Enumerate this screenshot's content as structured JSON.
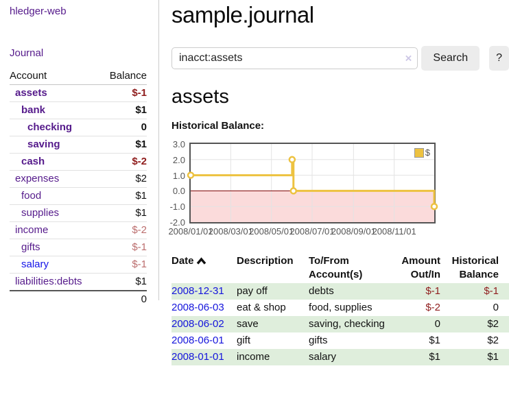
{
  "app": {
    "brand": "hledger-web",
    "nav_journal": "Journal"
  },
  "header": {
    "title": "sample.journal"
  },
  "search": {
    "value": "inacct:assets",
    "clear_icon": "×",
    "button_label": "Search",
    "help_label": "?"
  },
  "account_page": {
    "heading": "assets",
    "chart_title": "Historical Balance:"
  },
  "sidebar": {
    "columns": {
      "account": "Account",
      "balance": "Balance"
    },
    "accounts": [
      {
        "name": "assets",
        "level": 0,
        "bold": true,
        "balance": "$-1",
        "balance_style": "neg-strong"
      },
      {
        "name": "bank",
        "level": 1,
        "bold": true,
        "balance": "$1",
        "balance_style": "pos"
      },
      {
        "name": "checking",
        "level": 2,
        "bold": true,
        "balance": "0",
        "balance_style": "pos"
      },
      {
        "name": "saving",
        "level": 2,
        "bold": true,
        "balance": "$1",
        "balance_style": "pos"
      },
      {
        "name": "cash",
        "level": 1,
        "bold": true,
        "balance": "$-2",
        "balance_style": "neg-strong"
      },
      {
        "name": "expenses",
        "level": 0,
        "bold": false,
        "balance": "$2",
        "balance_style": "pos"
      },
      {
        "name": "food",
        "level": 1,
        "bold": false,
        "balance": "$1",
        "balance_style": "pos"
      },
      {
        "name": "supplies",
        "level": 1,
        "bold": false,
        "balance": "$1",
        "balance_style": "pos"
      },
      {
        "name": "income",
        "level": 0,
        "bold": false,
        "balance": "$-2",
        "balance_style": "neg-soft"
      },
      {
        "name": "gifts",
        "level": 1,
        "bold": false,
        "balance": "$-1",
        "balance_style": "neg-soft"
      },
      {
        "name": "salary",
        "level": 1,
        "bold": false,
        "balance": "$-1",
        "balance_style": "neg-soft",
        "link_color": "blue"
      },
      {
        "name": "liabilities:debts",
        "level": 0,
        "bold": false,
        "balance": "$1",
        "balance_style": "pos"
      }
    ],
    "total": "0"
  },
  "chart_data": {
    "type": "line",
    "title": "Historical Balance:",
    "step": true,
    "series": [
      {
        "name": "$",
        "color": "#edc240",
        "points": [
          [
            "2008-01-01",
            1
          ],
          [
            "2008-06-01",
            2
          ],
          [
            "2008-06-03",
            0
          ],
          [
            "2008-12-31",
            -1
          ]
        ]
      }
    ],
    "x_ticks": [
      "2008/01/01",
      "2008/03/01",
      "2008/05/01",
      "2008/07/01",
      "2008/09/01",
      "2008/11/01"
    ],
    "y_ticks": [
      "3.0",
      "2.0",
      "1.0",
      "0.0",
      "-1.0",
      "-2.0"
    ],
    "ylim": [
      -2,
      3
    ],
    "xlim": [
      "2008-01-01",
      "2008-12-31"
    ],
    "grid": true,
    "legend_position": "top-right",
    "legend_label": "$",
    "negative_region_color": "#fbdbdb",
    "zero_line_color": "#7d0000",
    "grid_color": "#e3e3e3"
  },
  "register": {
    "columns": [
      {
        "key": "date",
        "label": "Date",
        "sort_icon": "caret-up",
        "sortable": true
      },
      {
        "key": "description",
        "label": "Description"
      },
      {
        "key": "accounts",
        "label": "To/From Account(s)"
      },
      {
        "key": "amount",
        "label": "Amount Out/In",
        "align": "right"
      },
      {
        "key": "balance",
        "label": "Historical Balance",
        "align": "right"
      }
    ],
    "rows": [
      {
        "date": "2008-12-31",
        "description": "pay off",
        "accounts": "debts",
        "amount": "$-1",
        "amount_neg": true,
        "balance": "$-1",
        "balance_neg": true
      },
      {
        "date": "2008-06-03",
        "description": "eat & shop",
        "accounts": "food, supplies",
        "amount": "$-2",
        "amount_neg": true,
        "balance": "0",
        "balance_neg": false
      },
      {
        "date": "2008-06-02",
        "description": "save",
        "accounts": "saving, checking",
        "amount": "0",
        "amount_neg": false,
        "balance": "$2",
        "balance_neg": false
      },
      {
        "date": "2008-06-01",
        "description": "gift",
        "accounts": "gifts",
        "amount": "$1",
        "amount_neg": false,
        "balance": "$2",
        "balance_neg": false
      },
      {
        "date": "2008-01-01",
        "description": "income",
        "accounts": "salary",
        "amount": "$1",
        "amount_neg": false,
        "balance": "$1",
        "balance_neg": false
      }
    ]
  },
  "colors": {
    "link_purple": "#551a8b",
    "link_blue": "#1414dc",
    "negative_strong": "#8f1d1d",
    "negative_soft": "#bb6d6d",
    "row_green": "#dfeedc",
    "series_gold": "#edc240",
    "negative_region": "#fbdbdb",
    "zero_line": "#7d0000",
    "button_bg": "#ececec"
  }
}
